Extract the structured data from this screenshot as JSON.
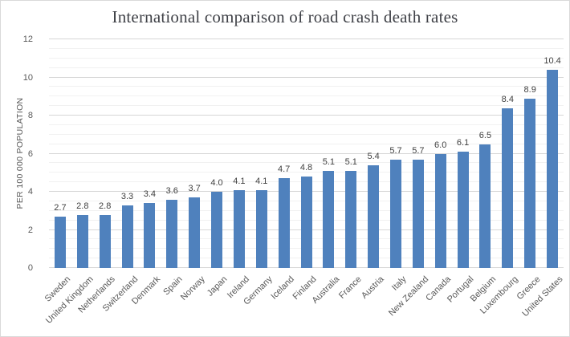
{
  "title": "International comparison of road crash death rates",
  "colors": {
    "bar": "#4F81BD",
    "grid_major": "#D6D6D6",
    "grid_minor": "#F1F1F1",
    "title_text": "#3F4147",
    "axis_text": "#595959",
    "data_label_text": "#404040",
    "frame_border": "#D9D9D9"
  },
  "chart_data": {
    "type": "bar",
    "title": "International comparison of road crash death rates",
    "xlabel": "",
    "ylabel": "PER 100 000 POPULATION",
    "ylim": [
      0,
      12
    ],
    "y_major_ticks": [
      0,
      2,
      4,
      6,
      8,
      10,
      12
    ],
    "y_minor_step": 0.5,
    "grid": "on",
    "legend": "none",
    "data_labels": "on",
    "bar_color": "#4F81BD",
    "categories": [
      "Sweden",
      "United Kingdom",
      "Netherlands",
      "Switzerland",
      "Denmark",
      "Spain",
      "Norway",
      "Japan",
      "Ireland",
      "Germany",
      "Iceland",
      "Finland",
      "Australia",
      "France",
      "Austria",
      "Italy",
      "New Zealand",
      "Canada",
      "Portugal",
      "Belgium",
      "Luxembourg",
      "Greece",
      "United States"
    ],
    "values": [
      2.7,
      2.8,
      2.8,
      3.3,
      3.4,
      3.6,
      3.7,
      4.0,
      4.1,
      4.1,
      4.7,
      4.8,
      5.1,
      5.1,
      5.4,
      5.7,
      5.7,
      6.0,
      6.1,
      6.5,
      8.4,
      8.9,
      10.4
    ]
  }
}
